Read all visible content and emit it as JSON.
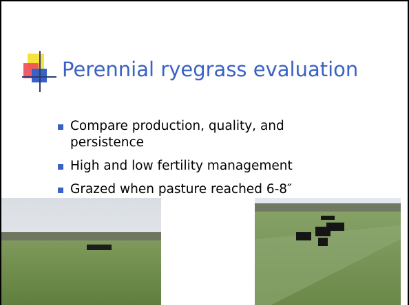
{
  "title": "Perennial ryegrass evaluation",
  "bullets": [
    "Compare production, quality, and persistence",
    "High and low fertility management",
    "Grazed when pasture reached 6-8″"
  ]
}
